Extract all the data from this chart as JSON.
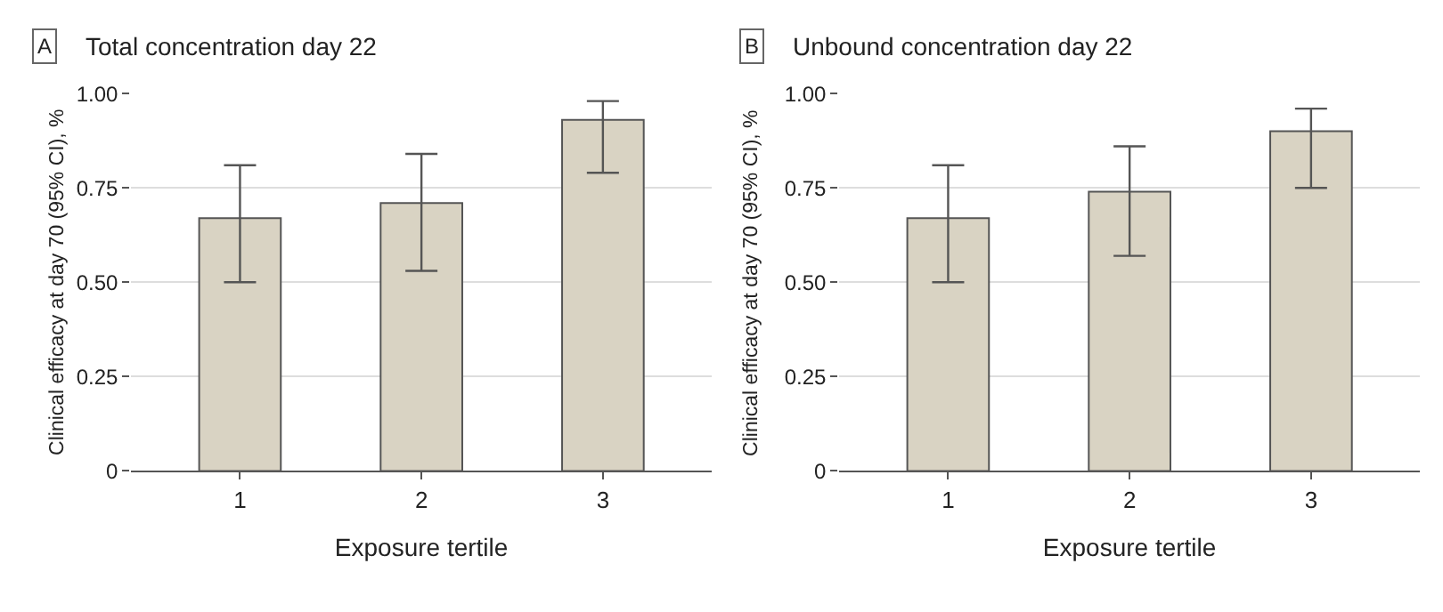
{
  "chart_data": [
    {
      "type": "bar",
      "title": "Total concentration day 22",
      "annotations": [
        "A"
      ],
      "xlabel": "Exposure tertile",
      "ylabel": "Clinical efficacy at day 70 (95% CI), %",
      "categories": [
        "1",
        "2",
        "3"
      ],
      "values": [
        0.67,
        0.71,
        0.93
      ],
      "errors": [
        [
          0.5,
          0.81
        ],
        [
          0.53,
          0.84
        ],
        [
          0.79,
          0.98
        ]
      ],
      "color": "#d9d3c3",
      "ylim": [
        0,
        1
      ],
      "yticks": [
        {
          "value": 0,
          "label": "0"
        },
        {
          "value": 0.25,
          "label": "0.25"
        },
        {
          "value": 0.5,
          "label": "0.50"
        },
        {
          "value": 0.75,
          "label": "0.75"
        },
        {
          "value": 1,
          "label": "1.00"
        }
      ],
      "grid": "y"
    },
    {
      "type": "bar",
      "title": "Unbound concentration day 22",
      "annotations": [
        "B"
      ],
      "xlabel": "Exposure tertile",
      "ylabel": "Clinical efficacy at day 70 (95% CI), %",
      "categories": [
        "1",
        "2",
        "3"
      ],
      "values": [
        0.67,
        0.74,
        0.9
      ],
      "errors": [
        [
          0.5,
          0.81
        ],
        [
          0.57,
          0.86
        ],
        [
          0.75,
          0.96
        ]
      ],
      "color": "#d9d3c3",
      "ylim": [
        0,
        1
      ],
      "yticks": [
        {
          "value": 0,
          "label": "0"
        },
        {
          "value": 0.25,
          "label": "0.25"
        },
        {
          "value": 0.5,
          "label": "0.50"
        },
        {
          "value": 0.75,
          "label": "0.75"
        },
        {
          "value": 1,
          "label": "1.00"
        }
      ],
      "grid": "y"
    }
  ]
}
